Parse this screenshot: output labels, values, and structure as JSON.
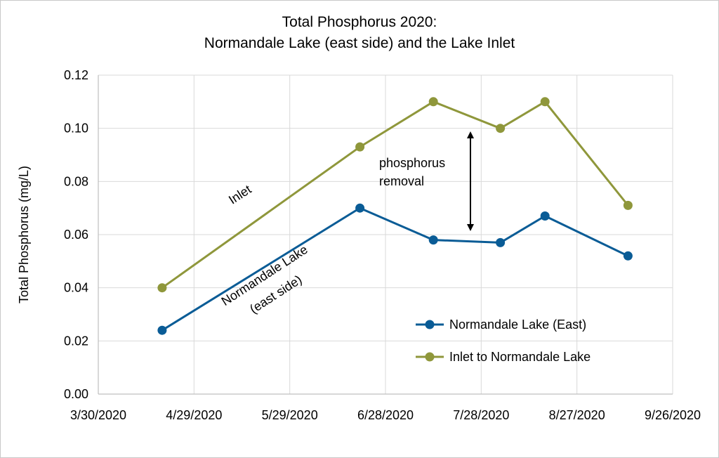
{
  "chart_data": {
    "type": "line",
    "title_lines": [
      "Total Phosphorus 2020:",
      "Normandale Lake (east side) and the Lake Inlet"
    ],
    "ylabel": "Total Phosphorus (mg/L)",
    "xlabel": "",
    "ylim": [
      0,
      0.12
    ],
    "y_ticks": [
      "0.00",
      "0.02",
      "0.04",
      "0.06",
      "0.08",
      "0.10",
      "0.12"
    ],
    "x_ticks": [
      "3/30/2020",
      "4/29/2020",
      "5/29/2020",
      "6/28/2020",
      "7/28/2020",
      "8/27/2020",
      "9/26/2020"
    ],
    "grid": true,
    "legend_position": "bottom-right",
    "series": [
      {
        "name": "Normandale Lake (East)",
        "color": "#0a5c96",
        "points": [
          {
            "x": "2020-04-19",
            "y": 0.024
          },
          {
            "x": "2020-06-20",
            "y": 0.07
          },
          {
            "x": "2020-07-13",
            "y": 0.058
          },
          {
            "x": "2020-08-03",
            "y": 0.057
          },
          {
            "x": "2020-08-17",
            "y": 0.067
          },
          {
            "x": "2020-09-12",
            "y": 0.052
          }
        ]
      },
      {
        "name": "Inlet to Normandale Lake",
        "color": "#8f973b",
        "points": [
          {
            "x": "2020-04-19",
            "y": 0.04
          },
          {
            "x": "2020-06-20",
            "y": 0.093
          },
          {
            "x": "2020-07-13",
            "y": 0.11
          },
          {
            "x": "2020-08-03",
            "y": 0.1
          },
          {
            "x": "2020-08-17",
            "y": 0.11
          },
          {
            "x": "2020-09-12",
            "y": 0.071
          }
        ]
      }
    ],
    "annotations": {
      "inlet_label": "Inlet",
      "lake_label_line1": "Normandale Lake",
      "lake_label_line2": "(east side)",
      "removal_line1": "phosphorus",
      "removal_line2": "removal"
    }
  }
}
